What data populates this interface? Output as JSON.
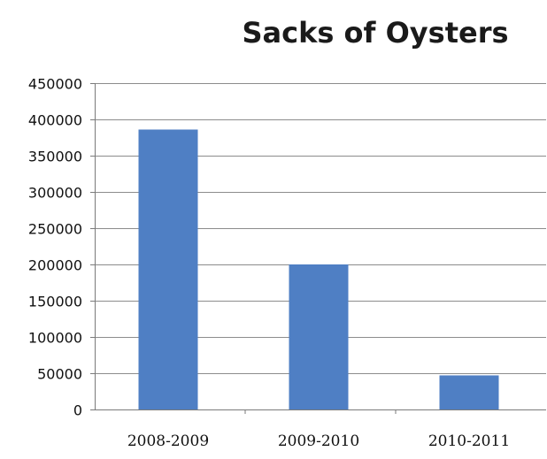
{
  "chart_data": {
    "type": "bar",
    "title": "Sacks of Oysters",
    "xlabel": "",
    "ylabel": "",
    "categories": [
      "2008-2009",
      "2009-2010",
      "2010-2011"
    ],
    "values": [
      386000,
      200000,
      47000
    ],
    "ylim": [
      0,
      450000
    ],
    "yticks": [
      "0",
      "50000",
      "100000",
      "150000",
      "200000",
      "250000",
      "300000",
      "350000",
      "400000",
      "450000"
    ],
    "grid": true,
    "legend": "none",
    "bar_color": "#4f7fc4",
    "grid_color": "#8c8c8c"
  }
}
